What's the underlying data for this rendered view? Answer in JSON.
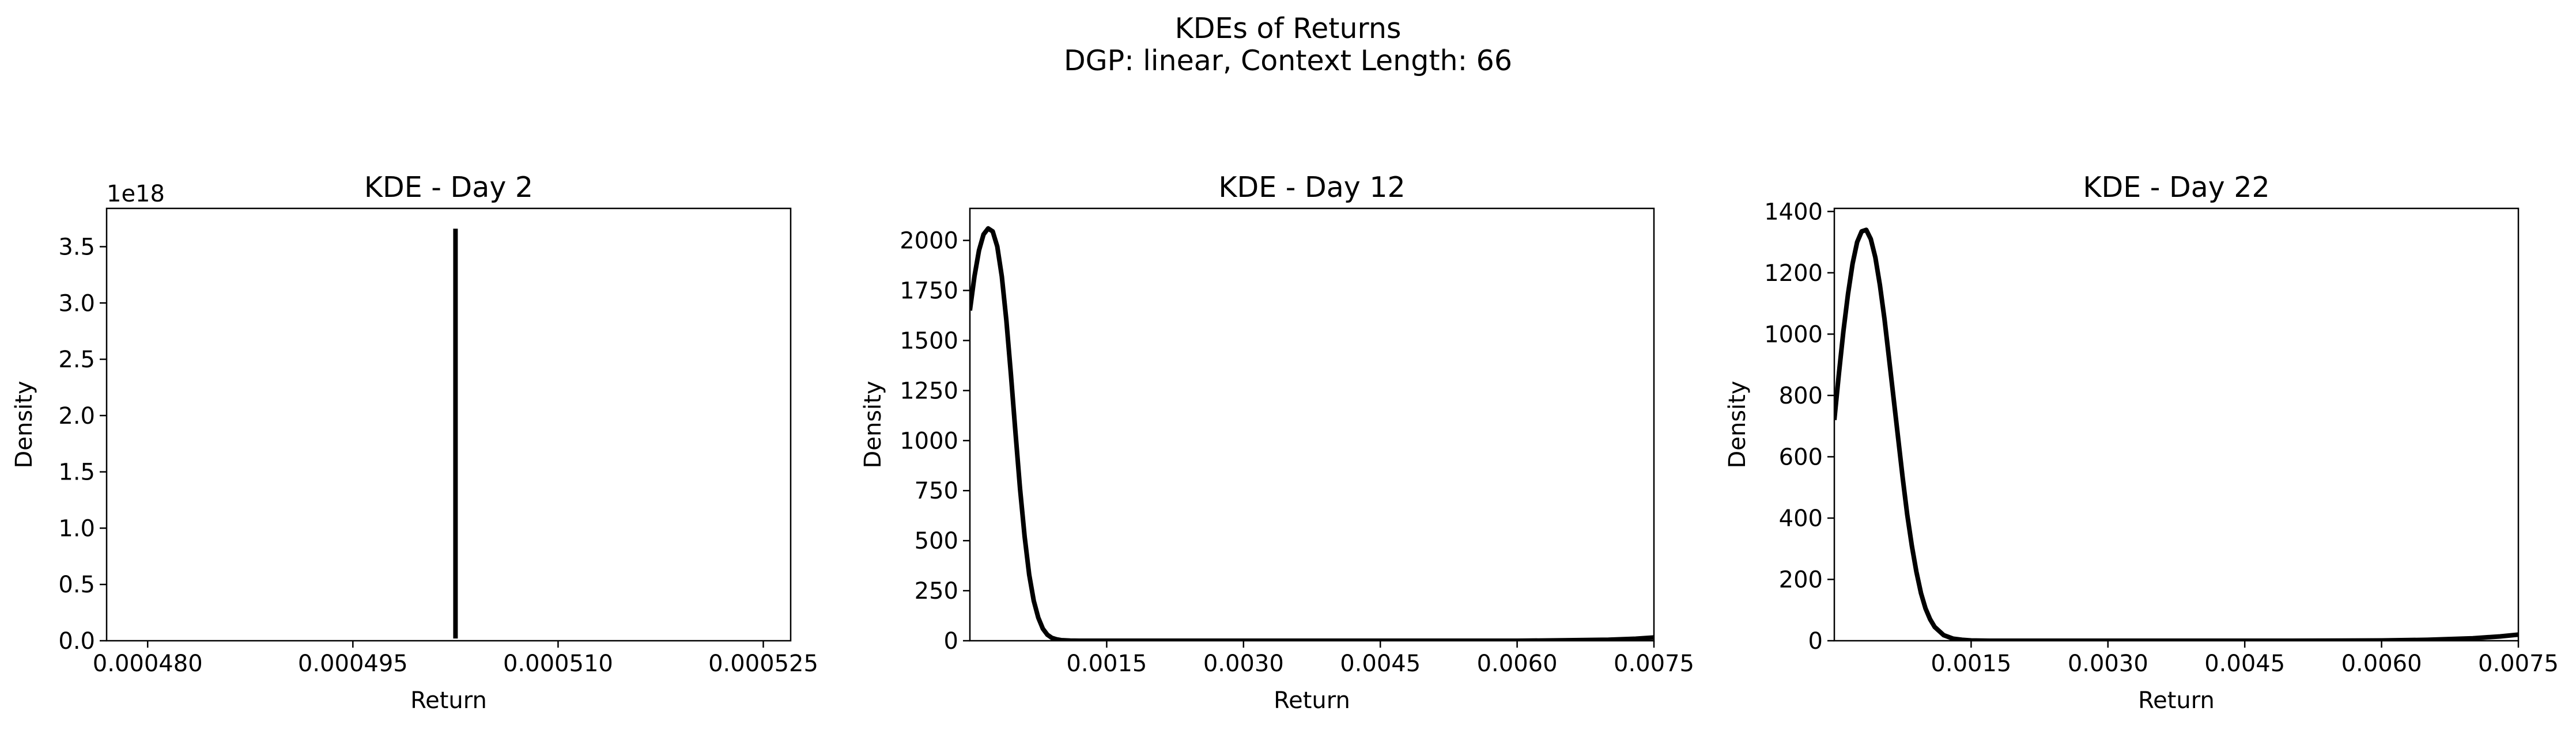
{
  "figure": {
    "suptitle_line1": "KDEs of Returns",
    "suptitle_line2": "DGP: linear, Context Length: 66"
  },
  "chart_data": [
    {
      "type": "line",
      "title": "KDE - Day 2",
      "xlabel": "Return",
      "ylabel": "Density",
      "offset_label": "1e18",
      "xlim": [
        0.000477,
        0.000527
      ],
      "ylim": [
        0,
        3.84
      ],
      "xticks": [
        0.00048,
        0.000495,
        0.00051,
        0.000525
      ],
      "xtick_labels": [
        "0.000480",
        "0.000495",
        "0.000510",
        "0.000525"
      ],
      "yticks": [
        0,
        0.5,
        1.0,
        1.5,
        2.0,
        2.5,
        3.0,
        3.5
      ],
      "ytick_labels": [
        "0.0",
        "0.5",
        "1.0",
        "1.5",
        "2.0",
        "2.5",
        "3.0",
        "3.5"
      ],
      "grid": false,
      "line_color": "#000000",
      "x": [
        0.0005025,
        0.0005025,
        0.0005025
      ],
      "y": [
        0.02,
        1.8,
        3.66
      ]
    },
    {
      "type": "line",
      "title": "KDE - Day 12",
      "xlabel": "Return",
      "ylabel": "Density",
      "xlim": [
        0.0,
        0.0075
      ],
      "ylim": [
        0,
        2160
      ],
      "xticks": [
        0.0015,
        0.003,
        0.0045,
        0.006,
        0.0075
      ],
      "xtick_labels": [
        "0.0015",
        "0.0030",
        "0.0045",
        "0.0060",
        "0.0075"
      ],
      "yticks": [
        0,
        250,
        500,
        750,
        1000,
        1250,
        1500,
        1750,
        2000
      ],
      "ytick_labels": [
        "0",
        "250",
        "500",
        "750",
        "1000",
        "1250",
        "1500",
        "1750",
        "2000"
      ],
      "grid": false,
      "line_color": "#000000",
      "x": [
        0.0,
        5e-05,
        0.0001,
        0.00015,
        0.0002,
        0.00025,
        0.0003,
        0.00035,
        0.0004,
        0.00045,
        0.0005,
        0.00055,
        0.0006,
        0.00065,
        0.0007,
        0.00075,
        0.0008,
        0.00085,
        0.0009,
        0.00095,
        0.001,
        0.0011,
        0.0012,
        0.0013,
        0.0015,
        0.002,
        0.003,
        0.004,
        0.005,
        0.006,
        0.0065,
        0.007,
        0.0073,
        0.0075
      ],
      "y": [
        1650,
        1820,
        1950,
        2030,
        2060,
        2045,
        1970,
        1820,
        1600,
        1330,
        1040,
        760,
        520,
        330,
        200,
        115,
        60,
        30,
        14,
        7,
        3,
        1,
        0,
        0,
        0,
        0,
        0,
        0,
        0,
        0,
        2,
        5,
        10,
        16
      ]
    },
    {
      "type": "line",
      "title": "KDE - Day 22",
      "xlabel": "Return",
      "ylabel": "Density",
      "xlim": [
        0.0,
        0.0075
      ],
      "ylim": [
        0,
        1410
      ],
      "xticks": [
        0.0015,
        0.003,
        0.0045,
        0.006,
        0.0075
      ],
      "xtick_labels": [
        "0.0015",
        "0.0030",
        "0.0045",
        "0.0060",
        "0.0075"
      ],
      "yticks": [
        0,
        200,
        400,
        600,
        800,
        1000,
        1200,
        1400
      ],
      "ytick_labels": [
        "0",
        "200",
        "400",
        "600",
        "800",
        "1000",
        "1200",
        "1400"
      ],
      "grid": false,
      "line_color": "#000000",
      "x": [
        0.0,
        5e-05,
        0.0001,
        0.00015,
        0.0002,
        0.00025,
        0.0003,
        0.00035,
        0.0004,
        0.00045,
        0.0005,
        0.00055,
        0.0006,
        0.00065,
        0.0007,
        0.00075,
        0.0008,
        0.00085,
        0.0009,
        0.00095,
        0.001,
        0.00105,
        0.0011,
        0.0012,
        0.0013,
        0.0014,
        0.0015,
        0.0017,
        0.002,
        0.003,
        0.004,
        0.005,
        0.006,
        0.0065,
        0.007,
        0.0073,
        0.0075
      ],
      "y": [
        720,
        870,
        1010,
        1130,
        1230,
        1300,
        1335,
        1340,
        1310,
        1250,
        1160,
        1050,
        920,
        790,
        660,
        530,
        410,
        310,
        225,
        155,
        105,
        70,
        45,
        18,
        7,
        3,
        1,
        0,
        0,
        0,
        0,
        0,
        1,
        3,
        8,
        14,
        20
      ]
    }
  ]
}
